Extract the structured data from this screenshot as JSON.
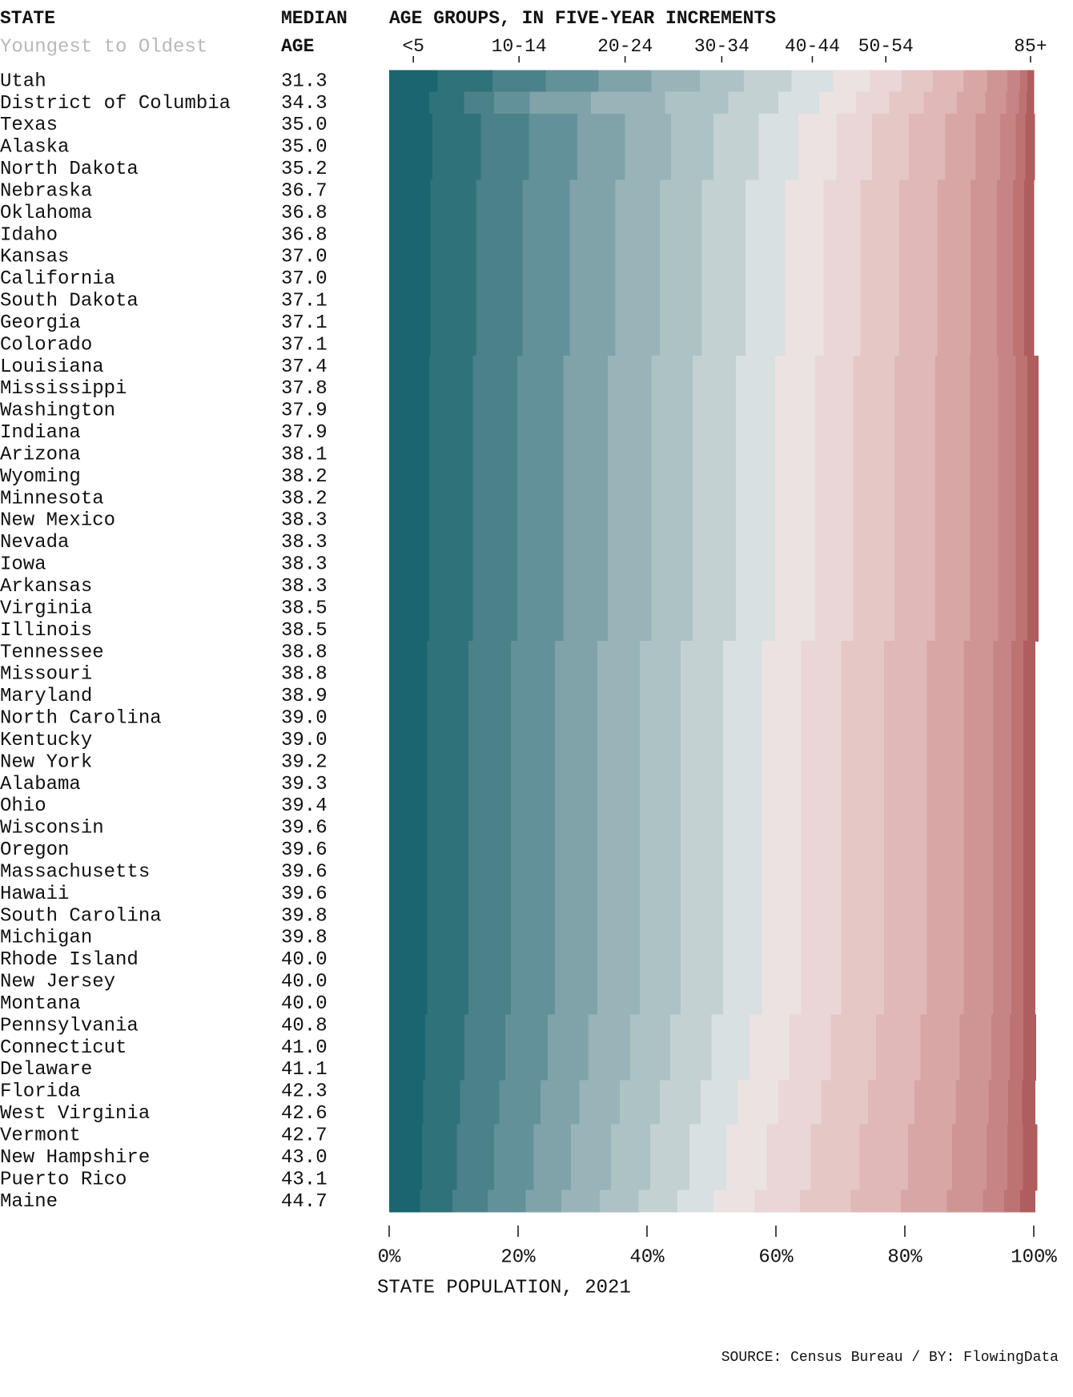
{
  "chart_data": {
    "type": "stacked_bar_100",
    "state_header": "STATE",
    "state_subheader": "Youngest to Oldest",
    "median_header": "MEDIAN",
    "median_subheader": "AGE",
    "title": "AGE GROUPS, IN FIVE-YEAR INCREMENTS",
    "x_label": "STATE POPULATION, 2021",
    "source": "SOURCE: Census Bureau / BY: FlowingData",
    "categories": [
      "Utah",
      "District of Columbia",
      "Texas",
      "Alaska",
      "North Dakota",
      "Nebraska",
      "Oklahoma",
      "Idaho",
      "Kansas",
      "California",
      "South Dakota",
      "Georgia",
      "Colorado",
      "Louisiana",
      "Mississippi",
      "Washington",
      "Indiana",
      "Arizona",
      "Wyoming",
      "Minnesota",
      "New Mexico",
      "Nevada",
      "Iowa",
      "Arkansas",
      "Virginia",
      "Illinois",
      "Tennessee",
      "Missouri",
      "Maryland",
      "North Carolina",
      "Kentucky",
      "New York",
      "Alabama",
      "Ohio",
      "Wisconsin",
      "Oregon",
      "Massachusetts",
      "Hawaii",
      "South Carolina",
      "Michigan",
      "Rhode Island",
      "New Jersey",
      "Montana",
      "Pennsylvania",
      "Connecticut",
      "Delaware",
      "Florida",
      "West Virginia",
      "Vermont",
      "New Hampshire",
      "Puerto Rico",
      "Maine"
    ],
    "median_age": [
      31.3,
      34.3,
      35.0,
      35.0,
      35.2,
      36.7,
      36.8,
      36.8,
      37.0,
      37.0,
      37.1,
      37.1,
      37.1,
      37.4,
      37.8,
      37.9,
      37.9,
      38.1,
      38.2,
      38.2,
      38.3,
      38.3,
      38.3,
      38.3,
      38.5,
      38.5,
      38.8,
      38.8,
      38.9,
      39.0,
      39.0,
      39.2,
      39.3,
      39.4,
      39.6,
      39.6,
      39.6,
      39.6,
      39.8,
      39.8,
      40.0,
      40.0,
      40.0,
      40.8,
      41.0,
      41.1,
      42.3,
      42.6,
      42.7,
      43.0,
      43.1,
      44.7
    ],
    "median_age_labels": [
      "31.3",
      "34.3",
      "35.0",
      "35.0",
      "35.2",
      "36.7",
      "36.8",
      "36.8",
      "37.0",
      "37.0",
      "37.1",
      "37.1",
      "37.1",
      "37.4",
      "37.8",
      "37.9",
      "37.9",
      "38.1",
      "38.2",
      "38.2",
      "38.3",
      "38.3",
      "38.3",
      "38.3",
      "38.5",
      "38.5",
      "38.8",
      "38.8",
      "38.9",
      "39.0",
      "39.0",
      "39.2",
      "39.3",
      "39.4",
      "39.6",
      "39.6",
      "39.6",
      "39.6",
      "39.8",
      "39.8",
      "40.0",
      "40.0",
      "40.0",
      "40.8",
      "41.0",
      "41.1",
      "42.3",
      "42.6",
      "42.7",
      "43.0",
      "43.1",
      "44.7"
    ],
    "xlim": [
      0,
      100
    ],
    "xticks": [
      {
        "value": 0,
        "label": "0%"
      },
      {
        "value": 20,
        "label": "20%"
      },
      {
        "value": 40,
        "label": "40%"
      },
      {
        "value": 60,
        "label": "60%"
      },
      {
        "value": 80,
        "label": "80%"
      },
      {
        "value": 100,
        "label": "100%"
      }
    ],
    "series": [
      {
        "name": "<5",
        "color": "#1a6570",
        "values": [
          7.5,
          6.2,
          6.7,
          6.7,
          6.7,
          6.4,
          6.4,
          6.4,
          6.4,
          6.4,
          6.4,
          6.4,
          6.4,
          6.2,
          6.2,
          6.2,
          6.2,
          6.2,
          6.2,
          6.2,
          6.2,
          6.2,
          6.2,
          6.2,
          6.2,
          6.2,
          5.9,
          5.9,
          5.9,
          5.9,
          5.9,
          5.9,
          5.9,
          5.9,
          5.9,
          5.9,
          5.9,
          5.9,
          5.9,
          5.9,
          5.9,
          5.9,
          5.9,
          5.6,
          5.6,
          5.6,
          5.3,
          5.3,
          5.1,
          5.1,
          5.1,
          4.8
        ]
      },
      {
        "name": null,
        "color": "#2f727a",
        "values": [
          8.5,
          5.4,
          7.5,
          7.5,
          7.5,
          7.1,
          7.1,
          7.1,
          7.1,
          7.1,
          7.1,
          7.1,
          7.1,
          6.8,
          6.8,
          6.8,
          6.8,
          6.8,
          6.8,
          6.8,
          6.8,
          6.8,
          6.8,
          6.8,
          6.8,
          6.8,
          6.4,
          6.4,
          6.4,
          6.4,
          6.4,
          6.4,
          6.4,
          6.4,
          6.4,
          6.4,
          6.4,
          6.4,
          6.4,
          6.4,
          6.4,
          6.4,
          6.4,
          6.1,
          6.1,
          6.1,
          5.7,
          5.7,
          5.4,
          5.4,
          5.4,
          5.0
        ]
      },
      {
        "name": "10-14",
        "color": "#4b8189",
        "values": [
          8.3,
          4.7,
          7.5,
          7.5,
          7.5,
          7.2,
          7.2,
          7.2,
          7.2,
          7.2,
          7.2,
          7.2,
          7.2,
          6.9,
          6.9,
          6.9,
          6.9,
          6.9,
          6.9,
          6.9,
          6.9,
          6.9,
          6.9,
          6.9,
          6.9,
          6.9,
          6.6,
          6.6,
          6.6,
          6.6,
          6.6,
          6.6,
          6.6,
          6.6,
          6.6,
          6.6,
          6.6,
          6.6,
          6.6,
          6.6,
          6.6,
          6.6,
          6.6,
          6.3,
          6.3,
          6.3,
          6.1,
          6.1,
          5.8,
          5.8,
          5.8,
          5.5
        ]
      },
      {
        "name": null,
        "color": "#62919a",
        "values": [
          8.2,
          5.5,
          7.5,
          7.5,
          7.5,
          7.3,
          7.3,
          7.3,
          7.3,
          7.3,
          7.3,
          7.3,
          7.3,
          7.1,
          7.1,
          7.1,
          7.1,
          7.1,
          7.1,
          7.1,
          7.1,
          7.1,
          7.1,
          7.1,
          7.1,
          7.1,
          6.8,
          6.8,
          6.8,
          6.8,
          6.8,
          6.8,
          6.8,
          6.8,
          6.8,
          6.8,
          6.8,
          6.8,
          6.8,
          6.8,
          6.8,
          6.8,
          6.8,
          6.6,
          6.6,
          6.6,
          6.4,
          6.4,
          6.1,
          6.1,
          6.1,
          5.9
        ]
      },
      {
        "name": "20-24",
        "color": "#7fa3a8",
        "values": [
          8.2,
          9.5,
          7.4,
          7.4,
          7.4,
          7.1,
          7.1,
          7.1,
          7.1,
          7.1,
          7.1,
          7.1,
          7.1,
          6.9,
          6.9,
          6.9,
          6.9,
          6.9,
          6.9,
          6.9,
          6.9,
          6.9,
          6.9,
          6.9,
          6.9,
          6.9,
          6.6,
          6.6,
          6.6,
          6.6,
          6.6,
          6.6,
          6.6,
          6.6,
          6.6,
          6.6,
          6.6,
          6.6,
          6.6,
          6.6,
          6.6,
          6.6,
          6.6,
          6.3,
          6.3,
          6.3,
          6.0,
          6.0,
          5.8,
          5.8,
          5.8,
          5.5
        ]
      },
      {
        "name": null,
        "color": "#98b4b8",
        "values": [
          7.5,
          11.5,
          7.1,
          7.1,
          7.1,
          6.9,
          6.9,
          6.9,
          6.9,
          6.9,
          6.9,
          6.9,
          6.9,
          6.8,
          6.8,
          6.8,
          6.8,
          6.8,
          6.8,
          6.8,
          6.8,
          6.8,
          6.8,
          6.8,
          6.8,
          6.8,
          6.6,
          6.6,
          6.6,
          6.6,
          6.6,
          6.6,
          6.6,
          6.6,
          6.6,
          6.6,
          6.6,
          6.6,
          6.6,
          6.6,
          6.6,
          6.6,
          6.6,
          6.5,
          6.5,
          6.5,
          6.3,
          6.3,
          6.2,
          6.2,
          6.2,
          6.0
        ]
      },
      {
        "name": "30-34",
        "color": "#adc2c5",
        "values": [
          6.8,
          9.8,
          6.6,
          6.6,
          6.6,
          6.5,
          6.5,
          6.5,
          6.5,
          6.5,
          6.5,
          6.5,
          6.5,
          6.4,
          6.4,
          6.4,
          6.4,
          6.4,
          6.4,
          6.4,
          6.4,
          6.4,
          6.4,
          6.4,
          6.4,
          6.4,
          6.3,
          6.3,
          6.3,
          6.3,
          6.3,
          6.3,
          6.3,
          6.3,
          6.3,
          6.3,
          6.3,
          6.3,
          6.3,
          6.3,
          6.3,
          6.3,
          6.3,
          6.2,
          6.2,
          6.2,
          6.2,
          6.2,
          6.1,
          6.1,
          6.1,
          6.0
        ]
      },
      {
        "name": null,
        "color": "#c4d1d3",
        "values": [
          7.4,
          7.8,
          7.0,
          7.0,
          7.0,
          6.8,
          6.8,
          6.8,
          6.8,
          6.8,
          6.8,
          6.8,
          6.8,
          6.7,
          6.7,
          6.7,
          6.7,
          6.7,
          6.7,
          6.7,
          6.7,
          6.7,
          6.7,
          6.7,
          6.7,
          6.7,
          6.6,
          6.6,
          6.6,
          6.6,
          6.6,
          6.6,
          6.6,
          6.6,
          6.6,
          6.6,
          6.6,
          6.6,
          6.6,
          6.6,
          6.6,
          6.6,
          6.6,
          6.4,
          6.4,
          6.4,
          6.3,
          6.3,
          6.1,
          6.1,
          6.1,
          6.0
        ]
      },
      {
        "name": "40-44",
        "color": "#d8e0e1",
        "values": [
          6.5,
          6.3,
          6.2,
          6.2,
          6.2,
          6.1,
          6.1,
          6.1,
          6.1,
          6.1,
          6.1,
          6.1,
          6.1,
          6.1,
          6.1,
          6.1,
          6.1,
          6.1,
          6.1,
          6.1,
          6.1,
          6.1,
          6.1,
          6.1,
          6.1,
          6.1,
          6.0,
          6.0,
          6.0,
          6.0,
          6.0,
          6.0,
          6.0,
          6.0,
          6.0,
          6.0,
          6.0,
          6.0,
          6.0,
          6.0,
          6.0,
          6.0,
          6.0,
          5.9,
          5.9,
          5.9,
          5.8,
          5.8,
          5.7,
          5.7,
          5.7,
          5.6
        ]
      },
      {
        "name": null,
        "color": "#ebe2e2",
        "values": [
          5.7,
          5.7,
          5.9,
          5.9,
          5.9,
          6.0,
          6.0,
          6.0,
          6.0,
          6.0,
          6.0,
          6.0,
          6.0,
          6.1,
          6.1,
          6.1,
          6.1,
          6.1,
          6.1,
          6.1,
          6.1,
          6.1,
          6.1,
          6.1,
          6.1,
          6.1,
          6.1,
          6.1,
          6.1,
          6.1,
          6.1,
          6.1,
          6.1,
          6.1,
          6.1,
          6.1,
          6.1,
          6.1,
          6.1,
          6.1,
          6.1,
          6.1,
          6.1,
          6.2,
          6.2,
          6.2,
          6.3,
          6.3,
          6.3,
          6.3,
          6.3,
          6.4
        ]
      },
      {
        "name": "50-54",
        "color": "#ead6d6",
        "values": [
          4.9,
          5.2,
          5.5,
          5.5,
          5.5,
          5.7,
          5.7,
          5.7,
          5.7,
          5.7,
          5.7,
          5.7,
          5.7,
          6.0,
          6.0,
          6.0,
          6.0,
          6.0,
          6.0,
          6.0,
          6.0,
          6.0,
          6.0,
          6.0,
          6.0,
          6.0,
          6.2,
          6.2,
          6.2,
          6.2,
          6.2,
          6.2,
          6.2,
          6.2,
          6.2,
          6.2,
          6.2,
          6.2,
          6.2,
          6.2,
          6.2,
          6.2,
          6.2,
          6.4,
          6.4,
          6.4,
          6.6,
          6.6,
          6.8,
          6.8,
          6.8,
          7.0
        ]
      },
      {
        "name": null,
        "color": "#e5c7c6",
        "values": [
          4.8,
          5.3,
          5.7,
          5.7,
          5.7,
          6.0,
          6.0,
          6.0,
          6.0,
          6.0,
          6.0,
          6.0,
          6.0,
          6.4,
          6.4,
          6.4,
          6.4,
          6.4,
          6.4,
          6.4,
          6.4,
          6.4,
          6.4,
          6.4,
          6.4,
          6.4,
          6.7,
          6.7,
          6.7,
          6.7,
          6.7,
          6.7,
          6.7,
          6.7,
          6.7,
          6.7,
          6.7,
          6.7,
          6.7,
          6.7,
          6.7,
          6.7,
          6.7,
          7.0,
          7.0,
          7.0,
          7.3,
          7.3,
          7.6,
          7.6,
          7.6,
          7.9
        ]
      },
      {
        "name": null,
        "color": "#dfb8b7",
        "values": [
          4.8,
          5.2,
          5.7,
          5.7,
          5.7,
          6.0,
          6.0,
          6.0,
          6.0,
          6.0,
          6.0,
          6.0,
          6.0,
          6.3,
          6.3,
          6.3,
          6.3,
          6.3,
          6.3,
          6.3,
          6.3,
          6.3,
          6.3,
          6.3,
          6.3,
          6.3,
          6.6,
          6.6,
          6.6,
          6.6,
          6.6,
          6.6,
          6.6,
          6.6,
          6.6,
          6.6,
          6.6,
          6.6,
          6.6,
          6.6,
          6.6,
          6.6,
          6.6,
          6.9,
          6.9,
          6.9,
          7.2,
          7.2,
          7.5,
          7.5,
          7.5,
          7.8
        ]
      },
      {
        "name": null,
        "color": "#d7a6a5",
        "values": [
          3.7,
          4.4,
          4.7,
          4.7,
          4.7,
          5.1,
          5.1,
          5.1,
          5.1,
          5.1,
          5.1,
          5.1,
          5.1,
          5.4,
          5.4,
          5.4,
          5.4,
          5.4,
          5.4,
          5.4,
          5.4,
          5.4,
          5.4,
          5.4,
          5.4,
          5.4,
          5.7,
          5.7,
          5.7,
          5.7,
          5.7,
          5.7,
          5.7,
          5.7,
          5.7,
          5.7,
          5.7,
          5.7,
          5.7,
          5.7,
          5.7,
          5.7,
          5.7,
          6.1,
          6.1,
          6.1,
          6.4,
          6.4,
          6.8,
          6.8,
          6.8,
          7.1
        ]
      },
      {
        "name": null,
        "color": "#ce9594",
        "values": [
          3.1,
          3.2,
          3.8,
          3.8,
          3.8,
          4.1,
          4.1,
          4.1,
          4.1,
          4.1,
          4.1,
          4.1,
          4.1,
          4.4,
          4.4,
          4.4,
          4.4,
          4.4,
          4.4,
          4.4,
          4.4,
          4.4,
          4.4,
          4.4,
          4.4,
          4.4,
          4.6,
          4.6,
          4.6,
          4.6,
          4.6,
          4.6,
          4.6,
          4.6,
          4.6,
          4.6,
          4.6,
          4.6,
          4.6,
          4.6,
          4.6,
          4.6,
          4.6,
          4.9,
          4.9,
          4.9,
          5.1,
          5.1,
          5.4,
          5.4,
          5.4,
          5.6
        ]
      },
      {
        "name": null,
        "color": "#c68584",
        "values": [
          2.0,
          2.0,
          2.4,
          2.4,
          2.4,
          2.5,
          2.5,
          2.5,
          2.5,
          2.5,
          2.5,
          2.5,
          2.5,
          2.7,
          2.7,
          2.7,
          2.7,
          2.7,
          2.7,
          2.7,
          2.7,
          2.7,
          2.7,
          2.7,
          2.7,
          2.7,
          2.8,
          2.8,
          2.8,
          2.8,
          2.8,
          2.8,
          2.8,
          2.8,
          2.8,
          2.8,
          2.8,
          2.8,
          2.8,
          2.8,
          2.8,
          2.8,
          2.8,
          2.9,
          2.9,
          2.9,
          3.0,
          3.0,
          3.2,
          3.2,
          3.2,
          3.3
        ]
      },
      {
        "name": null,
        "color": "#bc7372",
        "values": [
          1.1,
          1.2,
          1.5,
          1.5,
          1.5,
          1.7,
          1.7,
          1.7,
          1.7,
          1.7,
          1.7,
          1.7,
          1.7,
          1.8,
          1.8,
          1.8,
          1.8,
          1.8,
          1.8,
          1.8,
          1.8,
          1.8,
          1.8,
          1.8,
          1.8,
          1.8,
          1.9,
          1.9,
          1.9,
          1.9,
          1.9,
          1.9,
          1.9,
          1.9,
          1.9,
          1.9,
          1.9,
          1.9,
          1.9,
          1.9,
          1.9,
          1.9,
          1.9,
          2.1,
          2.1,
          2.1,
          2.2,
          2.2,
          2.4,
          2.4,
          2.4,
          2.5
        ]
      },
      {
        "name": "85+",
        "color": "#b05d5e",
        "values": [
          1.0,
          1.1,
          1.4,
          1.4,
          1.4,
          1.5,
          1.5,
          1.5,
          1.5,
          1.5,
          1.5,
          1.5,
          1.5,
          1.7,
          1.7,
          1.7,
          1.7,
          1.7,
          1.7,
          1.7,
          1.7,
          1.7,
          1.7,
          1.7,
          1.7,
          1.7,
          1.8,
          1.8,
          1.8,
          1.8,
          1.8,
          1.8,
          1.8,
          1.8,
          1.8,
          1.8,
          1.8,
          1.8,
          1.8,
          1.8,
          1.8,
          1.8,
          1.8,
          1.9,
          1.9,
          1.9,
          2.0,
          2.0,
          2.2,
          2.2,
          2.2,
          2.3
        ]
      }
    ]
  }
}
